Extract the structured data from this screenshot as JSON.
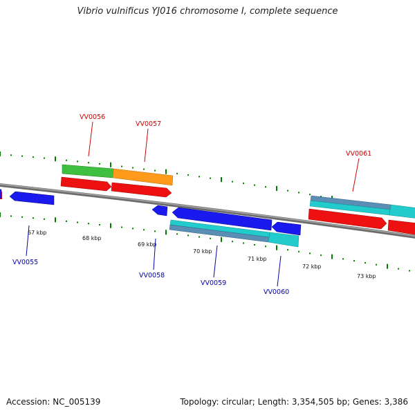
{
  "title": "Vibrio vulnificus YJ016 chromosome I, complete sequence",
  "footer": {
    "accession": "Accession: NC_005139",
    "summary": "Topology: circular; Length: 3,354,505 bp; Genes: 3,386"
  },
  "scale_labels": [
    "67 kbp",
    "68 kbp",
    "69 kbp",
    "70 kbp",
    "71 kbp",
    "72 kbp",
    "73 kbp"
  ],
  "genes_forward": [
    "VV0056",
    "VV0057",
    "VV0061"
  ],
  "genes_reverse": [
    "VV0055",
    "VV0058",
    "VV0059",
    "VV0060"
  ],
  "colors": {
    "forward_label": "#cc0000",
    "reverse_label": "#0000aa",
    "tick_green": "#007a00",
    "backbone": "#7a7a7a",
    "cds_red": "#ee0000",
    "cds_blue": "#0000ee",
    "cog_green": "#33bb33",
    "cog_orange": "#ff9900",
    "cog_cyan": "#11cccc",
    "cog_steel": "#5588aa"
  }
}
